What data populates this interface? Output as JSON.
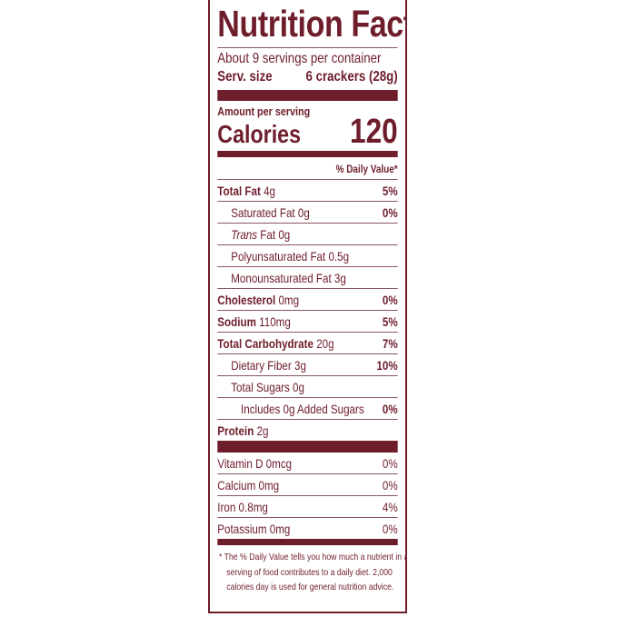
{
  "title": "Nutrition Facts",
  "servings_per_container": "About 9 servings per container",
  "serving_size_label": "Serv. size",
  "serving_size_value": "6 crackers (28g)",
  "amount_per_serving": "Amount per serving",
  "calories_label": "Calories",
  "calories_value": "120",
  "daily_value_header": "% Daily Value*",
  "nutrients": [
    {
      "name": "Total Fat",
      "amount": "4g",
      "dv": "5%"
    },
    {
      "name": "Saturated Fat 0g",
      "amount": "",
      "dv": "0%"
    },
    {
      "name": "Trans",
      "amount": " Fat 0g",
      "dv": ""
    },
    {
      "name": "Polyunsaturated Fat 0.5g",
      "amount": "",
      "dv": ""
    },
    {
      "name": "Monounsaturated Fat 3g",
      "amount": "",
      "dv": ""
    },
    {
      "name": "Cholesterol",
      "amount": "0mg",
      "dv": "0%"
    },
    {
      "name": "Sodium",
      "amount": "110mg",
      "dv": "5%"
    },
    {
      "name": "Total Carbohydrate",
      "amount": "20g",
      "dv": "7%"
    },
    {
      "name": "Dietary Fiber 3g",
      "amount": "",
      "dv": "10%"
    },
    {
      "name": "Total Sugars 0g",
      "amount": "",
      "dv": ""
    },
    {
      "name": "Includes 0g Added Sugars",
      "amount": "",
      "dv": "0%"
    },
    {
      "name": "Protein",
      "amount": "2g",
      "dv": ""
    }
  ],
  "vitamins": [
    {
      "name": "Vitamin D 0mcg",
      "dv": "0%"
    },
    {
      "name": "Calcium 0mg",
      "dv": "0%"
    },
    {
      "name": "Iron 0.8mg",
      "dv": "4%"
    },
    {
      "name": "Potassium 0mg",
      "dv": "0%"
    }
  ],
  "footnote": [
    "* The % Daily Value tells you how much a nutrient in a",
    "serving of food contributes to a daily diet. 2,000",
    "calories day is used for general nutrition advice."
  ],
  "colors": {
    "label": "#6e1d2b"
  }
}
